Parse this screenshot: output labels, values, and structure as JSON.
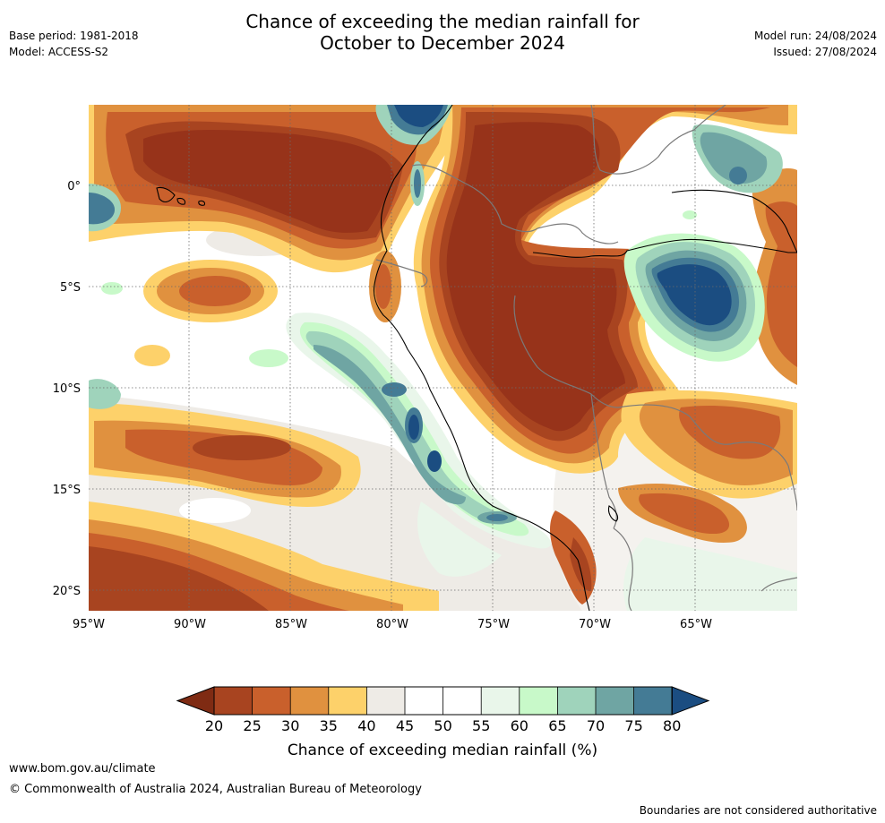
{
  "header": {
    "title_line1": "Chance of exceeding the median rainfall for",
    "title_line2": "October to December 2024",
    "base_period": "Base period: 1981-2018",
    "model": "Model: ACCESS-S2",
    "model_run": "Model run: 24/08/2024",
    "issued": "Issued: 27/08/2024"
  },
  "map": {
    "lon_ticks": [
      "95°W",
      "90°W",
      "85°W",
      "80°W",
      "75°W",
      "70°W",
      "65°W"
    ],
    "lat_ticks": [
      "0°",
      "5°S",
      "10°S",
      "15°S",
      "20°S"
    ]
  },
  "colorbar": {
    "title": "Chance of exceeding median rainfall (%)",
    "ticks": [
      "20",
      "25",
      "30",
      "35",
      "40",
      "45",
      "50",
      "55",
      "60",
      "65",
      "70",
      "75",
      "80"
    ],
    "colors": [
      "#7f2b13",
      "#a84420",
      "#c9602c",
      "#e0913f",
      "#fdd16a",
      "#eeebe6",
      "#ffffff",
      "#ffffff",
      "#e9f6ea",
      "#c8f9c9",
      "#9fd3bb",
      "#6fa5a3",
      "#447b95",
      "#1b4d81"
    ]
  },
  "footer": {
    "website": "www.bom.gov.au/climate",
    "copyright": "© Commonwealth of Australia 2024, Australian Bureau of Meteorology",
    "disclaimer": "Boundaries are not considered authoritative"
  }
}
